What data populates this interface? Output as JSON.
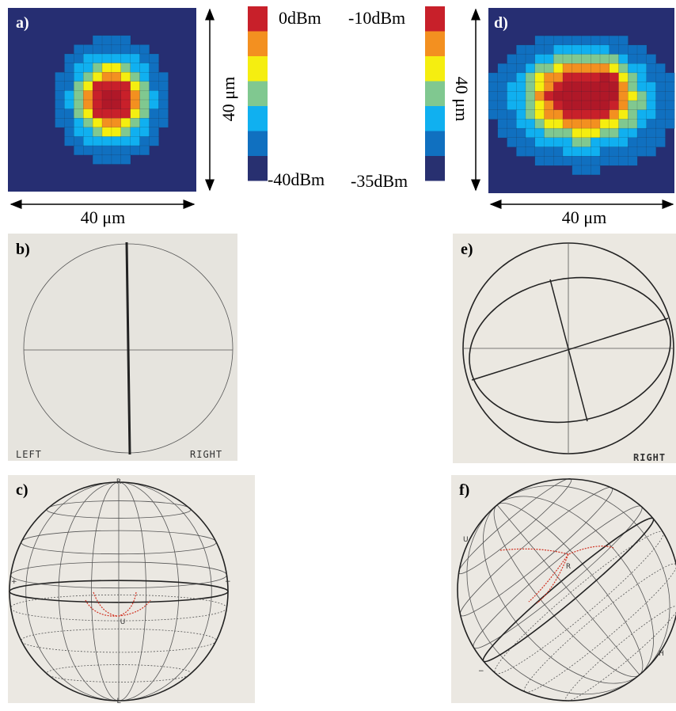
{
  "labels": [
    "a)",
    "b)",
    "c)",
    "d)",
    "e)",
    "f)"
  ],
  "scale_labels": [
    "40 μm",
    "40 μm",
    "40 μm",
    "40 μm"
  ],
  "colorbar_left": {
    "top": "0dBm",
    "bottom": "-40dBm"
  },
  "colorbar_right": {
    "top": "-10dBm",
    "bottom": "-35dBm"
  },
  "ellipse_b": {
    "left": "LEFT",
    "right": "RIGHT"
  },
  "ellipse_e": {
    "right": "RIGHT"
  },
  "sphere_c": {
    "top": "R",
    "bottom": "L",
    "center": "U",
    "left": "+",
    "right": "−"
  },
  "sphere_f": {
    "top": "R",
    "left": "U",
    "right": "H",
    "bottom": "−"
  }
}
